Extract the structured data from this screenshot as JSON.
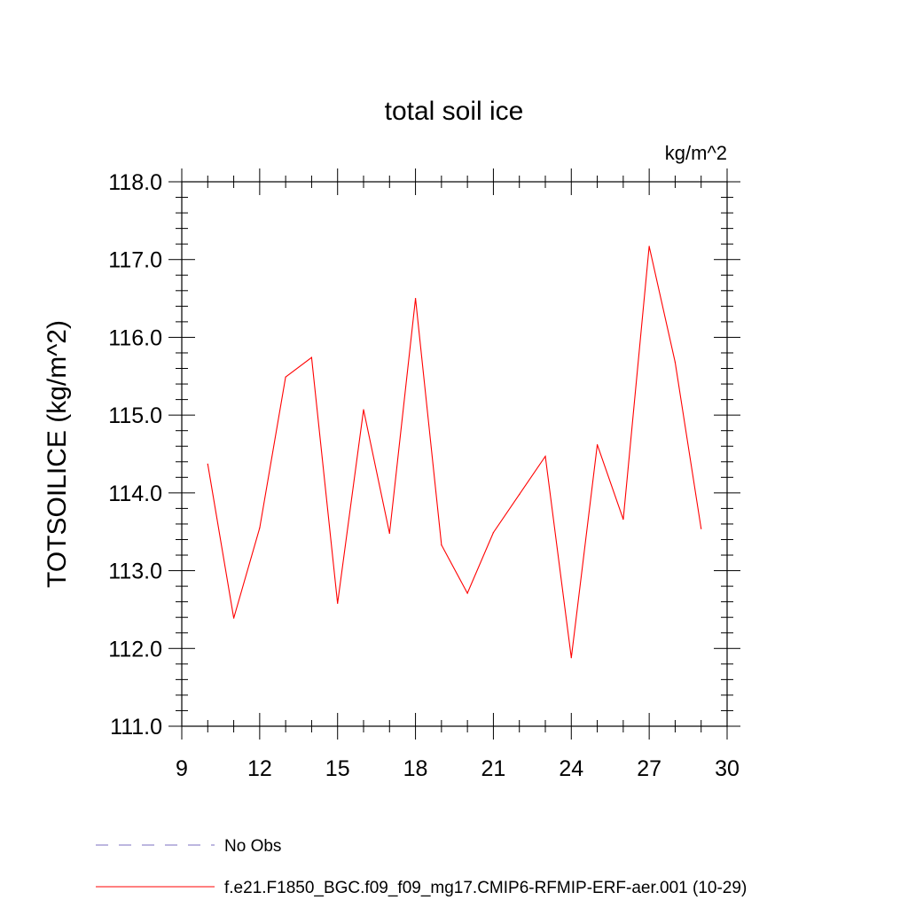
{
  "chart_data": {
    "type": "line",
    "title": "total soil ice",
    "units_label": "kg/m^2",
    "ylabel": "TOTSOILICE  (kg/m^2)",
    "xlabel": "",
    "xlim": [
      9,
      30
    ],
    "ylim": [
      111.0,
      118.0
    ],
    "x_ticks": [
      9,
      12,
      15,
      18,
      21,
      24,
      27,
      30
    ],
    "y_ticks": [
      "111.0",
      "112.0",
      "113.0",
      "114.0",
      "115.0",
      "116.0",
      "117.0",
      "118.0"
    ],
    "grid": false,
    "series": [
      {
        "name": "f.e21.F1850_BGC.f09_f09_mg17.CMIP6-RFMIP-ERF-aer.001 (10-29)",
        "color": "#ff0000",
        "x": [
          10,
          11,
          12,
          13,
          14,
          15,
          16,
          17,
          18,
          19,
          20,
          21,
          22,
          23,
          24,
          25,
          26,
          27,
          28,
          29
        ],
        "values": [
          114.37,
          112.39,
          113.55,
          115.49,
          115.74,
          112.58,
          115.07,
          113.48,
          116.5,
          113.33,
          112.71,
          113.49,
          113.98,
          114.47,
          111.88,
          114.62,
          113.66,
          117.17,
          115.68,
          113.54
        ]
      }
    ],
    "legend": {
      "placement": "bottom-left",
      "entries": [
        {
          "label": "No Obs",
          "color": "#7b6fc2",
          "style": "dashed"
        },
        {
          "label": "f.e21.F1850_BGC.f09_f09_mg17.CMIP6-RFMIP-ERF-aer.001 (10-29)",
          "color": "#ff0000",
          "style": "solid"
        }
      ]
    }
  }
}
